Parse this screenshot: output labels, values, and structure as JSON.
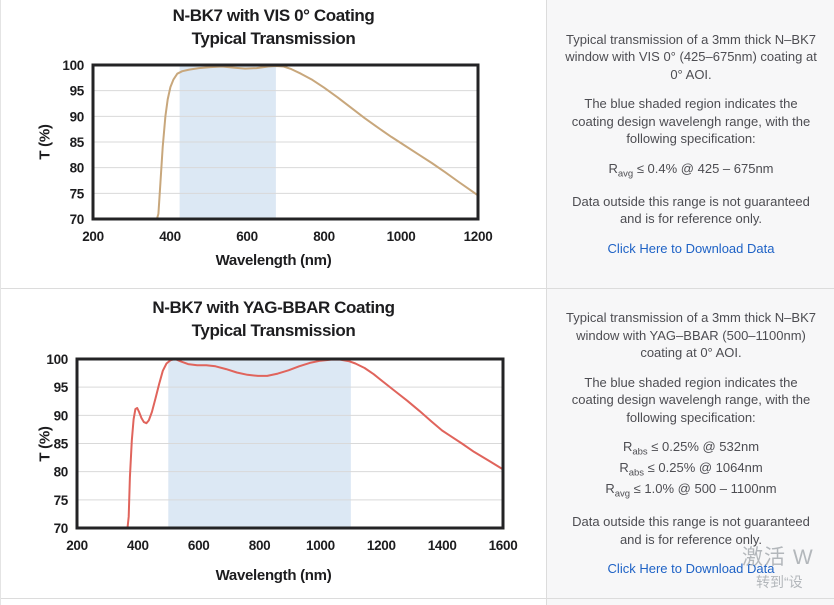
{
  "colors": {
    "panel_bg": "#f7f7f8",
    "divider": "#dcdcdc",
    "frame": "#232325",
    "gridline": "#d9d9d9",
    "link_blue": "#1e62c6",
    "watermark_gray": "#b3b7bb",
    "vis_line": "#c8a77c",
    "yag_line": "#e0645c",
    "shaded_blue": "#dce8f4"
  },
  "chart_data": [
    {
      "type": "line",
      "title": "N-BK7 with VIS 0° Coating",
      "subtitle": "Typical Transmission",
      "xlabel": "Wavelength (nm)",
      "ylabel": "T (%)",
      "xlim": [
        200,
        1200
      ],
      "ylim": [
        70,
        100
      ],
      "xticks": [
        200,
        400,
        600,
        800,
        1000,
        1200
      ],
      "yticks": [
        70,
        75,
        80,
        85,
        90,
        95,
        100
      ],
      "grid": "horizontal",
      "legend": "none",
      "shaded_region": [
        425,
        675
      ],
      "shaded_region_meaning": "coating design wavelength range",
      "shaded_color": "#dce8f4",
      "series": [
        {
          "name": "VIS 0° coated N-BK7 transmission",
          "color": "#c8a77c",
          "points": [
            [
              366,
              66
            ],
            [
              370,
              71
            ],
            [
              375,
              77
            ],
            [
              381,
              84
            ],
            [
              388,
              90
            ],
            [
              394,
              93.3
            ],
            [
              401,
              95.7
            ],
            [
              409,
              97.2
            ],
            [
              419,
              98.3
            ],
            [
              432,
              98.8
            ],
            [
              450,
              99.1
            ],
            [
              475,
              99.4
            ],
            [
              505,
              99.6
            ],
            [
              535,
              99.7
            ],
            [
              565,
              99.5
            ],
            [
              595,
              99.3
            ],
            [
              625,
              99.4
            ],
            [
              655,
              99.7
            ],
            [
              675,
              99.8
            ],
            [
              695,
              99.7
            ],
            [
              715,
              99.2
            ],
            [
              740,
              98.3
            ],
            [
              770,
              97.1
            ],
            [
              800,
              95.6
            ],
            [
              835,
              93.7
            ],
            [
              870,
              91.7
            ],
            [
              905,
              89.7
            ],
            [
              940,
              87.8
            ],
            [
              975,
              86
            ],
            [
              1010,
              84.3
            ],
            [
              1045,
              82.6
            ],
            [
              1080,
              80.9
            ],
            [
              1115,
              79.1
            ],
            [
              1150,
              77.2
            ],
            [
              1175,
              75.9
            ],
            [
              1200,
              74.6
            ]
          ]
        }
      ]
    },
    {
      "type": "line",
      "title": "N-BK7 with YAG-BBAR Coating",
      "subtitle": "Typical Transmission",
      "xlabel": "Wavelength (nm)",
      "ylabel": "T (%)",
      "xlim": [
        200,
        1600
      ],
      "ylim": [
        70,
        100
      ],
      "xticks": [
        200,
        400,
        600,
        800,
        1000,
        1200,
        1400,
        1600
      ],
      "yticks": [
        70,
        75,
        80,
        85,
        90,
        95,
        100
      ],
      "grid": "horizontal",
      "legend": "none",
      "shaded_region": [
        500,
        1100
      ],
      "shaded_region_meaning": "coating design wavelength range",
      "shaded_color": "#dce8f4",
      "series": [
        {
          "name": "YAG-BBAR coated N-BK7 transmission",
          "color": "#e0645c",
          "points": [
            [
              366,
              64
            ],
            [
              370,
              72
            ],
            [
              374,
              79
            ],
            [
              380,
              85.5
            ],
            [
              386,
              89.3
            ],
            [
              392,
              91.1
            ],
            [
              398,
              91.3
            ],
            [
              404,
              90.6
            ],
            [
              412,
              89.5
            ],
            [
              420,
              88.8
            ],
            [
              428,
              88.6
            ],
            [
              436,
              89.1
            ],
            [
              446,
              90.6
            ],
            [
              458,
              93
            ],
            [
              470,
              95.6
            ],
            [
              482,
              97.9
            ],
            [
              494,
              99.2
            ],
            [
              508,
              99.8
            ],
            [
              522,
              100
            ],
            [
              540,
              99.6
            ],
            [
              565,
              99.1
            ],
            [
              595,
              98.9
            ],
            [
              625,
              98.9
            ],
            [
              655,
              98.7
            ],
            [
              690,
              98.2
            ],
            [
              725,
              97.6
            ],
            [
              760,
              97.2
            ],
            [
              795,
              97
            ],
            [
              825,
              97
            ],
            [
              860,
              97.4
            ],
            [
              895,
              98
            ],
            [
              930,
              98.7
            ],
            [
              965,
              99.3
            ],
            [
              1000,
              99.7
            ],
            [
              1035,
              99.9
            ],
            [
              1065,
              99.9
            ],
            [
              1095,
              99.6
            ],
            [
              1115,
              99.2
            ],
            [
              1145,
              98.4
            ],
            [
              1175,
              97.3
            ],
            [
              1205,
              96
            ],
            [
              1245,
              94.3
            ],
            [
              1285,
              92.6
            ],
            [
              1325,
              90.8
            ],
            [
              1365,
              88.9
            ],
            [
              1400,
              87.3
            ],
            [
              1425,
              86.4
            ],
            [
              1465,
              85
            ],
            [
              1505,
              83.5
            ],
            [
              1555,
              81.9
            ],
            [
              1600,
              80.4
            ]
          ]
        }
      ]
    }
  ],
  "panels": [
    {
      "intro": "Typical transmission of a 3mm thick N–BK7 window with VIS 0° (425–675nm) coating at 0° AOI.",
      "region_note": "The blue shaded region indicates the coating design wavelengh range, with the following specification:",
      "specs": [
        {
          "symbol": "R",
          "sub": "avg",
          "condition": " ≤ 0.4% @ 425 – 675nm"
        }
      ],
      "disclaimer": "Data outside this range is not guaranteed and is for reference only.",
      "link_label": "Click Here to Download Data"
    },
    {
      "intro": "Typical transmission of a 3mm thick N–BK7 window with YAG–BBAR (500–1100nm) coating at 0° AOI.",
      "region_note": "The blue shaded region indicates the coating design wavelengh range, with the following specification:",
      "specs": [
        {
          "symbol": "R",
          "sub": "abs",
          "condition": " ≤ 0.25% @ 532nm"
        },
        {
          "symbol": "R",
          "sub": "abs",
          "condition": " ≤ 0.25% @ 1064nm"
        },
        {
          "symbol": "R",
          "sub": "avg",
          "condition": " ≤ 1.0% @ 500 – 1100nm"
        }
      ],
      "disclaimer": "Data outside this range is not guaranteed and is for reference only.",
      "link_label": "Click Here to Download Data"
    }
  ],
  "watermark": {
    "line1": "激活 W",
    "line2": "转到“设"
  }
}
